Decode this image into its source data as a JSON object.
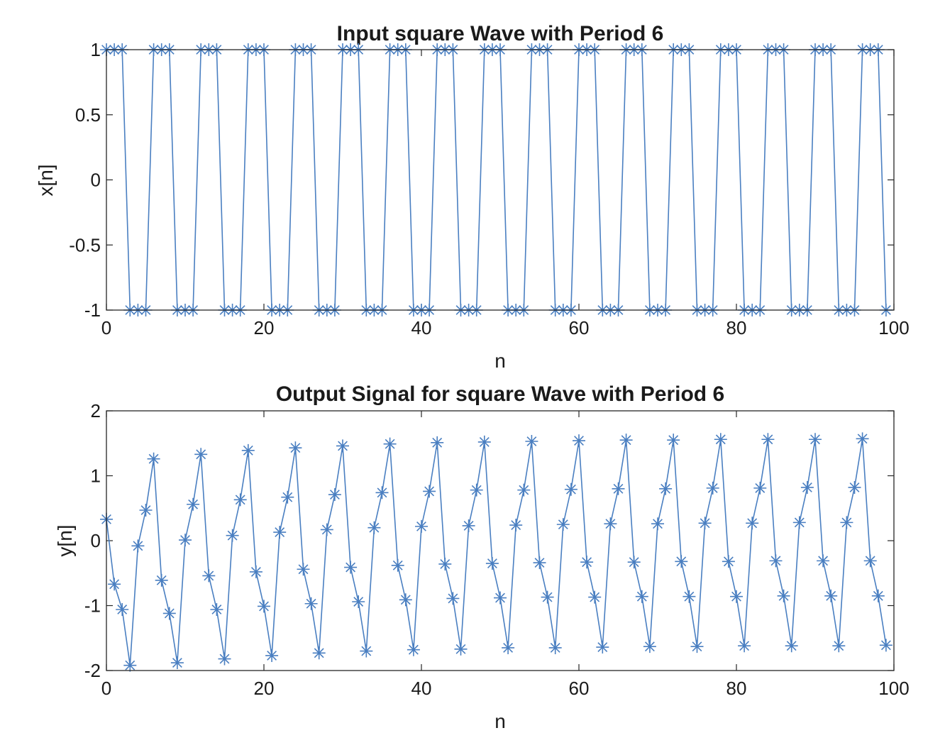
{
  "chart_data": [
    {
      "type": "line",
      "marker": "asterisk",
      "title": "Input square Wave with Period 6",
      "xlabel": "n",
      "ylabel": "x[n]",
      "xlim": [
        0,
        100
      ],
      "ylim": [
        -1,
        1
      ],
      "xticks": [
        0,
        20,
        40,
        60,
        80,
        100
      ],
      "xtick_labels": [
        "0",
        "20",
        "40",
        "60",
        "80",
        "100"
      ],
      "yticks": [
        -1,
        -0.5,
        0,
        0.5,
        1
      ],
      "ytick_labels": [
        "-1",
        "-0.5",
        "0",
        "0.5",
        "1"
      ],
      "grid": false,
      "color": "#4a7fc1",
      "x": [
        0,
        1,
        2,
        3,
        4,
        5,
        6,
        7,
        8,
        9,
        10,
        11,
        12,
        13,
        14,
        15,
        16,
        17,
        18,
        19,
        20,
        21,
        22,
        23,
        24,
        25,
        26,
        27,
        28,
        29,
        30,
        31,
        32,
        33,
        34,
        35,
        36,
        37,
        38,
        39,
        40,
        41,
        42,
        43,
        44,
        45,
        46,
        47,
        48,
        49,
        50,
        51,
        52,
        53,
        54,
        55,
        56,
        57,
        58,
        59,
        60,
        61,
        62,
        63,
        64,
        65,
        66,
        67,
        68,
        69,
        70,
        71,
        72,
        73,
        74,
        75,
        76,
        77,
        78,
        79,
        80,
        81,
        82,
        83,
        84,
        85,
        86,
        87,
        88,
        89,
        90,
        91,
        92,
        93,
        94,
        95,
        96,
        97,
        98,
        99
      ],
      "y": [
        1,
        1,
        1,
        -1,
        -1,
        -1,
        1,
        1,
        1,
        -1,
        -1,
        -1,
        1,
        1,
        1,
        -1,
        -1,
        -1,
        1,
        1,
        1,
        -1,
        -1,
        -1,
        1,
        1,
        1,
        -1,
        -1,
        -1,
        1,
        1,
        1,
        -1,
        -1,
        -1,
        1,
        1,
        1,
        -1,
        -1,
        -1,
        1,
        1,
        1,
        -1,
        -1,
        -1,
        1,
        1,
        1,
        -1,
        -1,
        -1,
        1,
        1,
        1,
        -1,
        -1,
        -1,
        1,
        1,
        1,
        -1,
        -1,
        -1,
        1,
        1,
        1,
        -1,
        -1,
        -1,
        1,
        1,
        1,
        -1,
        -1,
        -1,
        1,
        1,
        1,
        -1,
        -1,
        -1,
        1,
        1,
        1,
        -1,
        -1,
        -1,
        1,
        1,
        1,
        -1,
        -1,
        -1,
        1,
        1,
        1,
        -1
      ]
    },
    {
      "type": "line",
      "marker": "asterisk",
      "title": "Output Signal for square Wave with Period 6",
      "xlabel": "n",
      "ylabel": "y[n]",
      "xlim": [
        0,
        100
      ],
      "ylim": [
        -2,
        2
      ],
      "xticks": [
        0,
        20,
        40,
        60,
        80,
        100
      ],
      "xtick_labels": [
        "0",
        "20",
        "40",
        "60",
        "80",
        "100"
      ],
      "yticks": [
        -2,
        -1,
        0,
        1,
        2
      ],
      "ytick_labels": [
        "-2",
        "-1",
        "0",
        "1",
        "2"
      ],
      "grid": false,
      "color": "#4a7fc1",
      "x": [
        0,
        1,
        2,
        3,
        4,
        5,
        6,
        7,
        8,
        9,
        10,
        11,
        12,
        13,
        14,
        15,
        16,
        17,
        18,
        19,
        20,
        21,
        22,
        23,
        24,
        25,
        26,
        27,
        28,
        29,
        30,
        31,
        32,
        33,
        34,
        35,
        36,
        37,
        38,
        39,
        40,
        41,
        42,
        43,
        44,
        45,
        46,
        47,
        48,
        49,
        50,
        51,
        52,
        53,
        54,
        55,
        56,
        57,
        58,
        59,
        60,
        61,
        62,
        63,
        64,
        65,
        66,
        67,
        68,
        69,
        70,
        71,
        72,
        73,
        74,
        75,
        76,
        77,
        78,
        79,
        80,
        81,
        82,
        83,
        84,
        85,
        86,
        87,
        88,
        89,
        90,
        91,
        92,
        93,
        94,
        95,
        96,
        97,
        98,
        99
      ],
      "y": [
        0.33,
        -0.67,
        -1.06,
        -1.92,
        -0.08,
        0.47,
        1.26,
        -0.61,
        -1.12,
        -1.88,
        0.01,
        0.56,
        1.33,
        -0.54,
        -1.06,
        -1.82,
        0.08,
        0.63,
        1.39,
        -0.48,
        -1.01,
        -1.77,
        0.13,
        0.67,
        1.43,
        -0.44,
        -0.97,
        -1.73,
        0.17,
        0.71,
        1.46,
        -0.41,
        -0.94,
        -1.7,
        0.2,
        0.74,
        1.49,
        -0.38,
        -0.91,
        -1.68,
        0.22,
        0.76,
        1.51,
        -0.36,
        -0.89,
        -1.67,
        0.23,
        0.78,
        1.52,
        -0.35,
        -0.88,
        -1.65,
        0.24,
        0.78,
        1.53,
        -0.34,
        -0.87,
        -1.65,
        0.25,
        0.79,
        1.54,
        -0.33,
        -0.87,
        -1.64,
        0.26,
        0.8,
        1.55,
        -0.33,
        -0.86,
        -1.63,
        0.26,
        0.8,
        1.55,
        -0.32,
        -0.86,
        -1.63,
        0.27,
        0.81,
        1.56,
        -0.32,
        -0.86,
        -1.62,
        0.27,
        0.81,
        1.56,
        -0.31,
        -0.85,
        -1.62,
        0.28,
        0.82,
        1.56,
        -0.31,
        -0.85,
        -1.62,
        0.28,
        0.82,
        1.57,
        -0.31,
        -0.85,
        -1.61
      ]
    }
  ]
}
